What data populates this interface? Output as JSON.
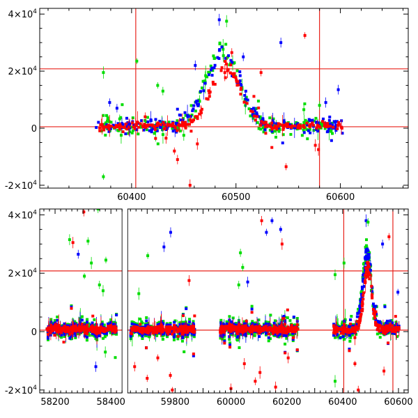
{
  "chart_data": [
    {
      "type": "scatter",
      "panel": "top",
      "xlim": [
        60312,
        60665
      ],
      "ylim": [
        -21000,
        42000
      ],
      "xticks": [
        60400,
        60500,
        60600
      ],
      "xtick_labels": [
        "60400",
        "60500",
        "60600"
      ],
      "yticks": [
        40000,
        20000,
        0,
        -20000
      ],
      "ytick_labels": [
        {
          "base": "4×10",
          "exp": "4"
        },
        {
          "base": "2×10",
          "exp": "4"
        },
        {
          "base": "0",
          "exp": ""
        },
        {
          "base": "-2×10",
          "exp": "4"
        }
      ],
      "reference_lines": {
        "horizontal": [
          20800,
          500
        ],
        "vertical": [
          60404,
          60580
        ]
      },
      "series": [
        {
          "color": "#ff0000",
          "marker": "square",
          "segments": [
            [
              60365,
              60602
            ]
          ],
          "flare": {
            "peak_x": 60490,
            "peak_y": 21000,
            "width": 14
          }
        },
        {
          "color": "#0000ff",
          "marker": "square",
          "segments": [
            [
              60365,
              60602
            ]
          ],
          "flare": {
            "peak_x": 60488,
            "peak_y": 25000,
            "width": 16
          }
        },
        {
          "color": "#00dd00",
          "marker": "square",
          "segments": [
            [
              60370,
              60600
            ]
          ],
          "flare": {
            "peak_x": 60487,
            "peak_y": 27000,
            "width": 15
          }
        }
      ],
      "outliers": [
        {
          "x": 60484,
          "y": 38000,
          "c": "#0000ff"
        },
        {
          "x": 60491,
          "y": 37500,
          "c": "#00dd00"
        },
        {
          "x": 60566,
          "y": 32500,
          "c": "#ff0000"
        },
        {
          "x": 60543,
          "y": 30000,
          "c": "#0000ff"
        },
        {
          "x": 60405,
          "y": 23500,
          "c": "#00dd00"
        },
        {
          "x": 60373,
          "y": 19500,
          "c": "#00dd00"
        },
        {
          "x": 60461,
          "y": 22000,
          "c": "#0000ff"
        },
        {
          "x": 60425,
          "y": 15000,
          "c": "#00dd00"
        },
        {
          "x": 60430,
          "y": 13000,
          "c": "#00dd00"
        },
        {
          "x": 60598,
          "y": 13500,
          "c": "#0000ff"
        },
        {
          "x": 60373,
          "y": -17000,
          "c": "#00dd00"
        },
        {
          "x": 60456,
          "y": -20000,
          "c": "#ff0000"
        },
        {
          "x": 60444,
          "y": -11000,
          "c": "#ff0000"
        },
        {
          "x": 60548,
          "y": -13500,
          "c": "#ff0000"
        },
        {
          "x": 60576,
          "y": -6000,
          "c": "#ff0000"
        },
        {
          "x": 60579,
          "y": -7500,
          "c": "#ff0000"
        },
        {
          "x": 60441,
          "y": -8000,
          "c": "#ff0000"
        },
        {
          "x": 60433,
          "y": -3500,
          "c": "#ff0000"
        },
        {
          "x": 60463,
          "y": -5500,
          "c": "#ff0000"
        },
        {
          "x": 60450,
          "y": -2500,
          "c": "#00dd00"
        },
        {
          "x": 60565,
          "y": 6500,
          "c": "#00dd00"
        },
        {
          "x": 60586,
          "y": 9000,
          "c": "#0000ff"
        },
        {
          "x": 60580,
          "y": 8000,
          "c": "#00dd00"
        },
        {
          "x": 60496,
          "y": 26500,
          "c": "#ff0000"
        },
        {
          "x": 60507,
          "y": 25000,
          "c": "#0000ff"
        },
        {
          "x": 60524,
          "y": 19500,
          "c": "#ff0000"
        },
        {
          "x": 60379,
          "y": 9000,
          "c": "#0000ff"
        },
        {
          "x": 60386,
          "y": 7000,
          "c": "#0000ff"
        },
        {
          "x": 60398,
          "y": 1500,
          "c": "#0000ff"
        },
        {
          "x": 60413,
          "y": 4000,
          "c": "#ff0000"
        }
      ]
    },
    {
      "type": "scatter",
      "panel": "bottom",
      "xlim": [
        58145,
        60635
      ],
      "ylim": [
        -21000,
        42000
      ],
      "axis_break": {
        "from": 58440,
        "to": 59630
      },
      "xticks": [
        58200,
        58300,
        58400,
        59800,
        60000,
        60200,
        60400,
        60600
      ],
      "xtick_labels": [
        "58200",
        "58400",
        "59800",
        "60000",
        "60200",
        "60400",
        "60600"
      ],
      "labeled_xticks": [
        58200,
        58400,
        59800,
        60000,
        60200,
        60400,
        60600
      ],
      "yticks": [
        40000,
        20000,
        0,
        -20000
      ],
      "ytick_labels": [
        {
          "base": "4×10",
          "exp": "4"
        },
        {
          "base": "2×10",
          "exp": "4"
        },
        {
          "base": "0",
          "exp": ""
        },
        {
          "base": "-2×10",
          "exp": "4"
        }
      ],
      "reference_lines": {
        "horizontal": [
          20800,
          500
        ],
        "vertical": [
          60404,
          60580
        ]
      },
      "series": [
        {
          "color": "#ff0000",
          "marker": "square",
          "segments": [
            [
              58170,
              58420
            ],
            [
              59640,
              59870
            ],
            [
              59960,
              60240
            ],
            [
              60365,
              60602
            ]
          ],
          "flare": {
            "peak_x": 60490,
            "peak_y": 21000,
            "width": 14
          }
        },
        {
          "color": "#0000ff",
          "marker": "square",
          "segments": [
            [
              58170,
              58420
            ],
            [
              59640,
              59870
            ],
            [
              59960,
              60240
            ],
            [
              60365,
              60602
            ]
          ],
          "flare": {
            "peak_x": 60488,
            "peak_y": 25000,
            "width": 16
          }
        },
        {
          "color": "#00dd00",
          "marker": "square",
          "segments": [
            [
              58170,
              58420
            ],
            [
              59640,
              59870
            ],
            [
              59960,
              60240
            ],
            [
              60370,
              60600
            ]
          ],
          "flare": {
            "peak_x": 60487,
            "peak_y": 27000,
            "width": 15
          }
        }
      ],
      "outliers": [
        {
          "x": 58303,
          "y": 41000,
          "c": "#ff0000"
        },
        {
          "x": 58354,
          "y": 42000,
          "c": "#00dd00"
        },
        {
          "x": 58252,
          "y": 31500,
          "c": "#00dd00"
        },
        {
          "x": 58264,
          "y": 30500,
          "c": "#ff0000"
        },
        {
          "x": 58318,
          "y": 31000,
          "c": "#00dd00"
        },
        {
          "x": 58283,
          "y": 26500,
          "c": "#0000ff"
        },
        {
          "x": 58382,
          "y": 24500,
          "c": "#00dd00"
        },
        {
          "x": 58305,
          "y": 19000,
          "c": "#00dd00"
        },
        {
          "x": 58330,
          "y": 23500,
          "c": "#00dd00"
        },
        {
          "x": 58359,
          "y": 16000,
          "c": "#00dd00"
        },
        {
          "x": 58372,
          "y": 14000,
          "c": "#00dd00"
        },
        {
          "x": 58346,
          "y": -12000,
          "c": "#0000ff"
        },
        {
          "x": 58380,
          "y": -7000,
          "c": "#00dd00"
        },
        {
          "x": 59702,
          "y": 26000,
          "c": "#00dd00"
        },
        {
          "x": 59784,
          "y": 34000,
          "c": "#0000ff"
        },
        {
          "x": 59760,
          "y": 29000,
          "c": "#0000ff"
        },
        {
          "x": 59850,
          "y": 17500,
          "c": "#ff0000"
        },
        {
          "x": 59670,
          "y": 13000,
          "c": "#00dd00"
        },
        {
          "x": 59700,
          "y": -16000,
          "c": "#ff0000"
        },
        {
          "x": 59783,
          "y": -15000,
          "c": "#ff0000"
        },
        {
          "x": 59790,
          "y": -20000,
          "c": "#ff0000"
        },
        {
          "x": 59655,
          "y": -12000,
          "c": "#ff0000"
        },
        {
          "x": 59738,
          "y": -9000,
          "c": "#ff0000"
        },
        {
          "x": 60110,
          "y": 38000,
          "c": "#ff0000"
        },
        {
          "x": 60147,
          "y": 38000,
          "c": "#0000ff"
        },
        {
          "x": 60127,
          "y": 34000,
          "c": "#0000ff"
        },
        {
          "x": 60178,
          "y": 35000,
          "c": "#0000ff"
        },
        {
          "x": 60034,
          "y": 27000,
          "c": "#00dd00"
        },
        {
          "x": 60183,
          "y": 30000,
          "c": "#ff0000"
        },
        {
          "x": 60042,
          "y": 22000,
          "c": "#00dd00"
        },
        {
          "x": 60028,
          "y": 16000,
          "c": "#00dd00"
        },
        {
          "x": 60060,
          "y": 17000,
          "c": "#0000ff"
        },
        {
          "x": 60104,
          "y": -14000,
          "c": "#ff0000"
        },
        {
          "x": 60087,
          "y": -17000,
          "c": "#ff0000"
        },
        {
          "x": 60160,
          "y": -19000,
          "c": "#ff0000"
        },
        {
          "x": 60048,
          "y": -11000,
          "c": "#ff0000"
        },
        {
          "x": 60205,
          "y": -9000,
          "c": "#ff0000"
        },
        {
          "x": 60000,
          "y": -19500,
          "c": "#ff0000"
        },
        {
          "x": 60484,
          "y": 38000,
          "c": "#0000ff"
        },
        {
          "x": 60491,
          "y": 37500,
          "c": "#00dd00"
        },
        {
          "x": 60566,
          "y": 32500,
          "c": "#ff0000"
        },
        {
          "x": 60543,
          "y": 30000,
          "c": "#0000ff"
        },
        {
          "x": 60373,
          "y": 19500,
          "c": "#00dd00"
        },
        {
          "x": 60405,
          "y": 23500,
          "c": "#00dd00"
        },
        {
          "x": 60598,
          "y": 13500,
          "c": "#0000ff"
        },
        {
          "x": 60373,
          "y": -17000,
          "c": "#00dd00"
        },
        {
          "x": 60456,
          "y": -20000,
          "c": "#ff0000"
        },
        {
          "x": 60444,
          "y": -11000,
          "c": "#ff0000"
        },
        {
          "x": 60548,
          "y": -13500,
          "c": "#ff0000"
        }
      ]
    }
  ]
}
